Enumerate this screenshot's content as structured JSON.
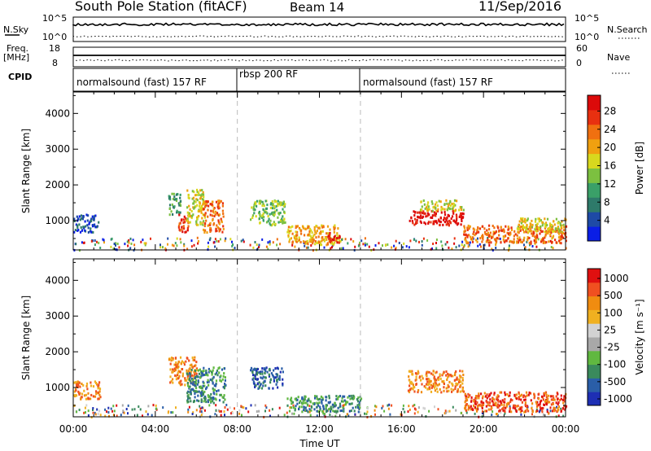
{
  "header": {
    "station": "South Pole Station (fitACF)",
    "beam": "Beam 14",
    "date": "11/Sep/2016"
  },
  "panels": {
    "nsky_label": "N.Sky",
    "nsky_ticks": [
      "10^5",
      "10^0"
    ],
    "nsearch_label": "N.Search",
    "nsearch_ticks": [
      "10^5",
      "10^0"
    ],
    "freq_label": "Freq.",
    "freq_unit": "[MHz]",
    "freq_ticks": [
      "18",
      "8"
    ],
    "nave_label": "Nave",
    "nave_ticks": [
      "60",
      "0"
    ],
    "cpid_label": "CPID",
    "cpid_segments": [
      {
        "label": "normalsound (fast) 157 RF",
        "start": 0,
        "end": 8
      },
      {
        "label": "rbsp 200 RF",
        "start": 8,
        "end": 14
      },
      {
        "label": "normalsound (fast) 157 RF",
        "start": 14,
        "end": 24
      }
    ]
  },
  "chart_data": [
    {
      "type": "heatmap",
      "name": "power",
      "ylabel": "Slant Range [km]",
      "ylim": [
        180,
        4600
      ],
      "xlim": [
        0,
        24
      ],
      "yticks": [
        "4000",
        "3000",
        "2000",
        "1000"
      ],
      "colorbar_label": "Power [dB]",
      "colorbar_ticks": [
        "28",
        "24",
        "20",
        "16",
        "12",
        "8",
        "4"
      ],
      "colors": [
        "#0a1ee6",
        "#1e4aa6",
        "#2e7a6a",
        "#3aa068",
        "#7cc040",
        "#d8d81e",
        "#f0a010",
        "#f07010",
        "#e83010",
        "#dc0a0a"
      ],
      "regions": [
        {
          "t0": 0.0,
          "t1": 1.2,
          "r0": 700,
          "r1": 1200,
          "level": 1
        },
        {
          "t0": 4.6,
          "t1": 5.2,
          "r0": 1200,
          "r1": 1800,
          "level": 3
        },
        {
          "t0": 5.1,
          "t1": 5.6,
          "r0": 700,
          "r1": 1200,
          "level": 8
        },
        {
          "t0": 5.5,
          "t1": 6.4,
          "r0": 900,
          "r1": 1900,
          "level": 5
        },
        {
          "t0": 6.3,
          "t1": 7.3,
          "r0": 700,
          "r1": 1600,
          "level": 7
        },
        {
          "t0": 8.6,
          "t1": 10.3,
          "r0": 900,
          "r1": 1600,
          "level": 4
        },
        {
          "t0": 10.4,
          "t1": 13.0,
          "r0": 350,
          "r1": 900,
          "level": 6
        },
        {
          "t0": 12.4,
          "t1": 13.0,
          "r0": 400,
          "r1": 700,
          "level": 9
        },
        {
          "t0": 16.3,
          "t1": 19.0,
          "r0": 900,
          "r1": 1300,
          "level": 9
        },
        {
          "t0": 16.8,
          "t1": 19.0,
          "r0": 1300,
          "r1": 1600,
          "level": 5
        },
        {
          "t0": 19.0,
          "t1": 24.0,
          "r0": 400,
          "r1": 900,
          "level": 7
        },
        {
          "t0": 21.6,
          "t1": 24.0,
          "r0": 700,
          "r1": 1100,
          "level": 5
        }
      ]
    },
    {
      "type": "heatmap",
      "name": "velocity",
      "ylabel": "Slant Range [km]",
      "ylim": [
        180,
        4600
      ],
      "xlim": [
        0,
        24
      ],
      "yticks": [
        "4000",
        "3000",
        "2000",
        "1000"
      ],
      "xticks": [
        "00:00",
        "04:00",
        "08:00",
        "12:00",
        "16:00",
        "20:00",
        "00:00"
      ],
      "xlabel": "Time UT",
      "colorbar_label": "Velocity [m s⁻¹]",
      "colorbar_ticks": [
        "1000",
        "500",
        "100",
        "25",
        "-25",
        "-100",
        "-500",
        "-1000"
      ],
      "colors": [
        "#1e2fb4",
        "#2a5ea8",
        "#3a8a5c",
        "#60b840",
        "#a8a8a8",
        "#d2d2d2",
        "#f0b020",
        "#f08c10",
        "#f05020",
        "#e01010"
      ],
      "regions": [
        {
          "t0": 0.0,
          "t1": 1.3,
          "r0": 700,
          "r1": 1200,
          "level": 7
        },
        {
          "t0": 4.6,
          "t1": 6.0,
          "r0": 1100,
          "r1": 1900,
          "level": 7
        },
        {
          "t0": 5.5,
          "t1": 7.4,
          "r0": 600,
          "r1": 1600,
          "level": 2
        },
        {
          "t0": 8.6,
          "t1": 10.2,
          "r0": 1000,
          "r1": 1600,
          "level": 1
        },
        {
          "t0": 10.4,
          "t1": 14.0,
          "r0": 350,
          "r1": 800,
          "level": 2
        },
        {
          "t0": 16.3,
          "t1": 19.0,
          "r0": 900,
          "r1": 1500,
          "level": 7
        },
        {
          "t0": 19.0,
          "t1": 24.0,
          "r0": 350,
          "r1": 900,
          "level": 8
        }
      ]
    }
  ]
}
